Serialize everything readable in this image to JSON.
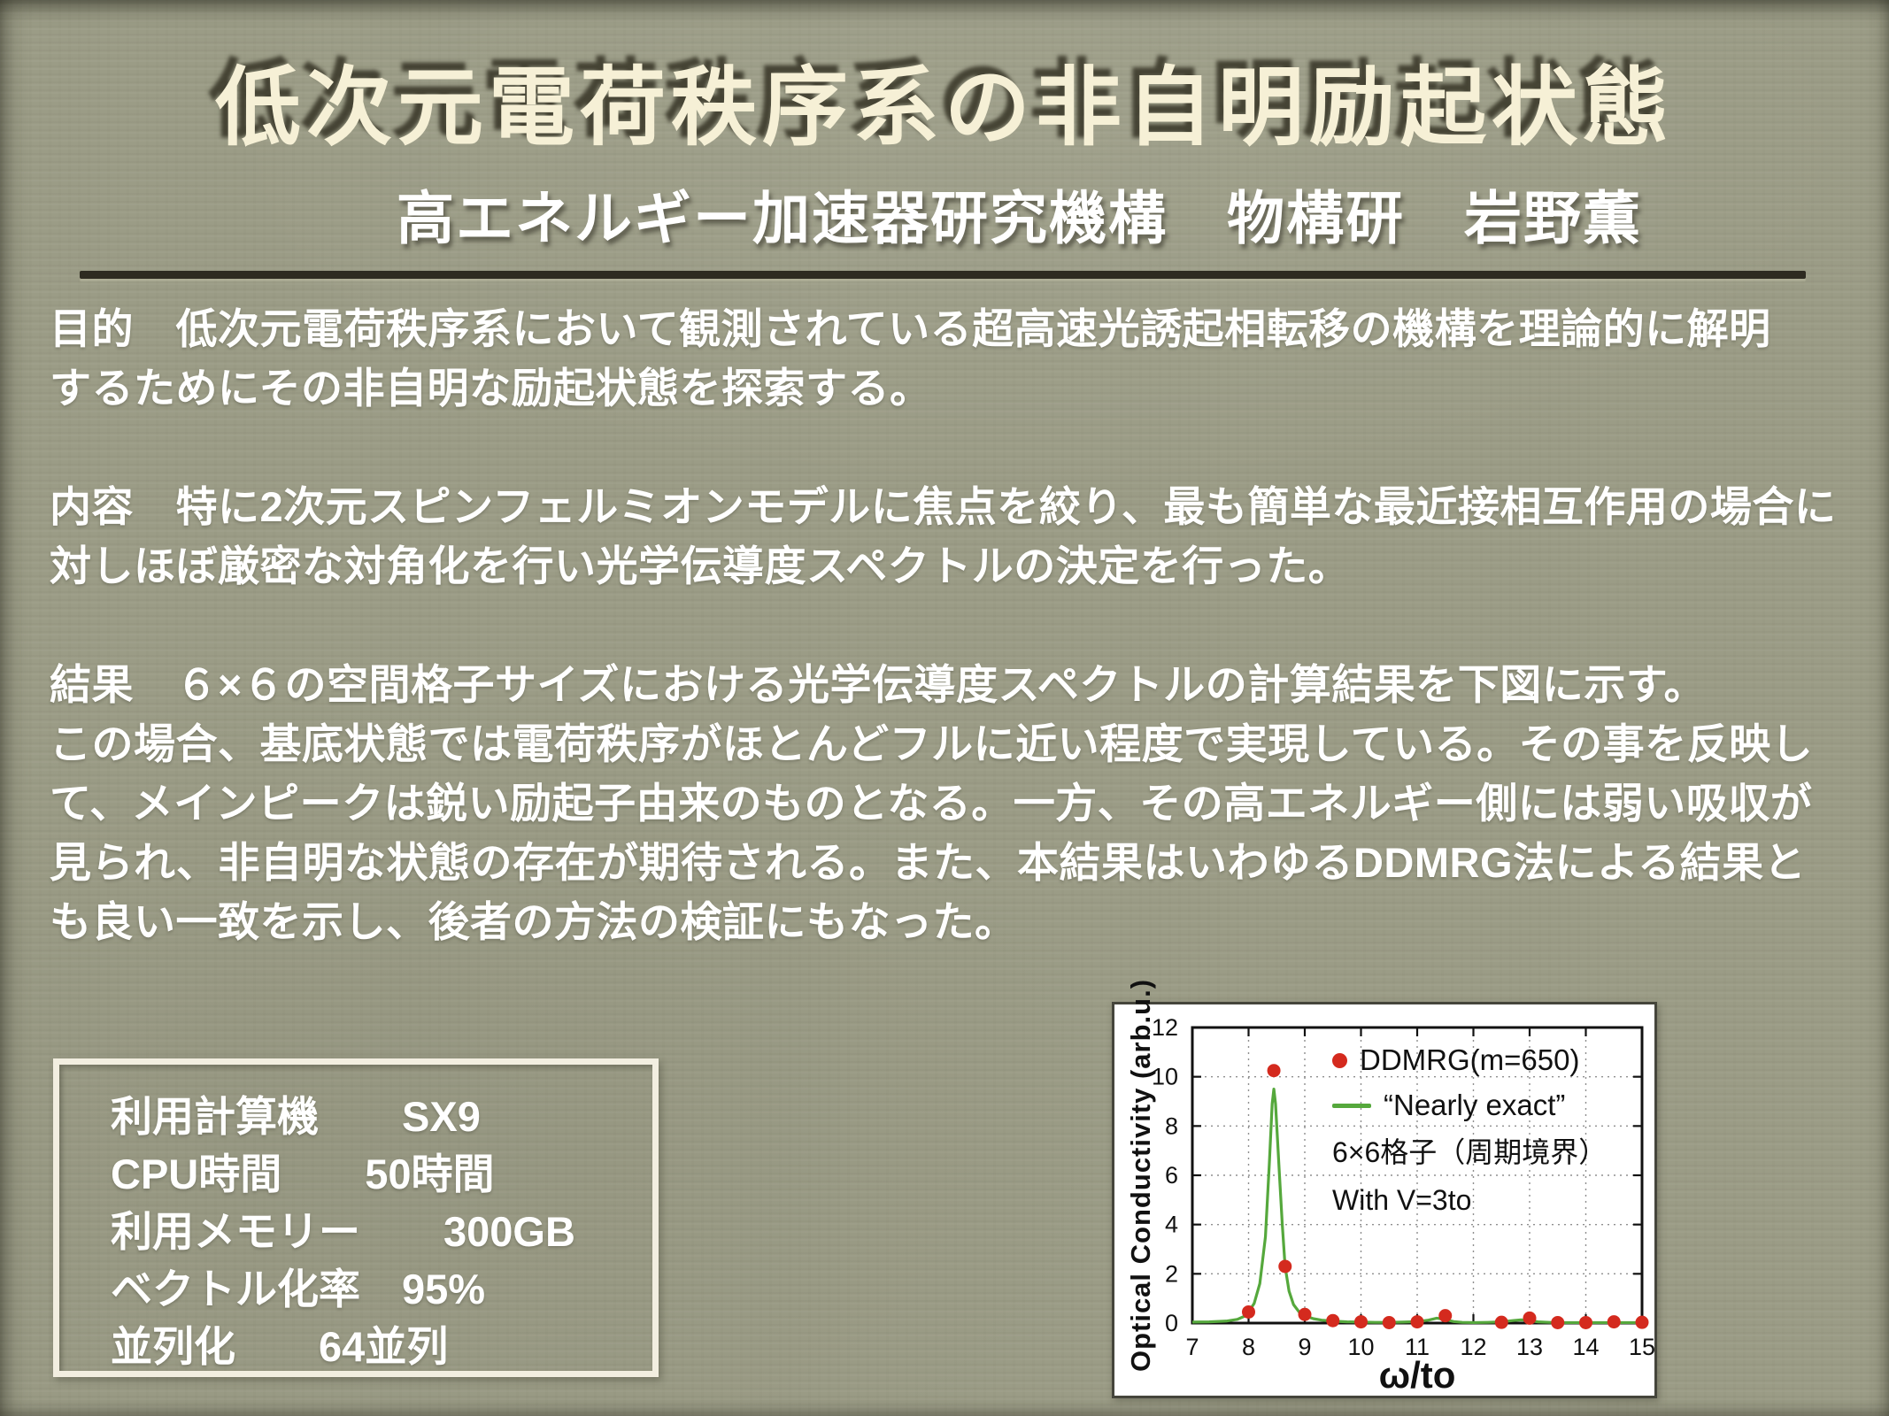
{
  "slide": {
    "title": "低次元電荷秩序系の非自明励起状態",
    "subtitle": "高エネルギー加速器研究機構　物構研　岩野薫"
  },
  "sections": {
    "purpose": {
      "lines": [
        "目的　低次元電荷秩序系において観測されている超高速光誘起相転移の機構を理論的に解明",
        "するためにその非自明な励起状態を探索する。"
      ]
    },
    "content": {
      "lines": [
        "内容　特に2次元スピンフェルミオンモデルに焦点を絞り、最も簡単な最近接相互作用の場合に",
        "対しほぼ厳密な対角化を行い光学伝導度スペクトルの決定を行った。"
      ]
    },
    "result": {
      "lines": [
        "結果　６×６の空間格子サイズにおける光学伝導度スペクトルの計算結果を下図に示す。",
        "この場合、基底状態では電荷秩序がほとんどフルに近い程度で実現している。その事を反映し",
        "て、メインピークは鋭い励起子由来のものとなる。一方、その高エネルギー側には弱い吸収が",
        "見られ、非自明な状態の存在が期待される。また、本結果はいわゆるDDMRG法による結果と",
        "も良い一致を示し、後者の方法の検証にもなった。"
      ]
    }
  },
  "spec_box": {
    "lines": [
      "利用計算機　　SX9",
      "CPU時間　　50時間",
      "利用メモリー　　300GB",
      "ベクトル化率　95%",
      "並列化　　64並列"
    ]
  },
  "chart_data": {
    "type": "line",
    "title": "",
    "xlabel": "ω/to",
    "ylabel": "Optical Conductivity (arb.u.)",
    "xlim": [
      7,
      15
    ],
    "ylim": [
      0,
      12
    ],
    "xticks": [
      7,
      8,
      9,
      10,
      11,
      12,
      13,
      14,
      15
    ],
    "yticks": [
      0,
      2,
      4,
      6,
      8,
      10,
      12
    ],
    "grid": true,
    "legend_position": "top-right",
    "annotations": [
      "6×6格子（周期境界）",
      "With V=3to"
    ],
    "series": [
      {
        "name": "DDMRG(m=650)",
        "type": "scatter",
        "color": "#d42a1e",
        "points": [
          [
            8.0,
            0.45
          ],
          [
            8.45,
            10.25
          ],
          [
            8.65,
            2.3
          ],
          [
            9.0,
            0.35
          ],
          [
            9.5,
            0.1
          ],
          [
            10.0,
            0.05
          ],
          [
            10.5,
            0.02
          ],
          [
            11.0,
            0.05
          ],
          [
            11.5,
            0.3
          ],
          [
            12.5,
            0.03
          ],
          [
            13.0,
            0.2
          ],
          [
            13.5,
            0.02
          ],
          [
            14.0,
            0.02
          ],
          [
            14.5,
            0.05
          ],
          [
            15.0,
            0.03
          ]
        ]
      },
      {
        "name": "“Nearly exact”",
        "type": "line",
        "color": "#55a83c",
        "points": [
          [
            7.0,
            0.04
          ],
          [
            7.3,
            0.05
          ],
          [
            7.6,
            0.08
          ],
          [
            7.8,
            0.15
          ],
          [
            7.95,
            0.3
          ],
          [
            8.0,
            0.45
          ],
          [
            8.1,
            0.8
          ],
          [
            8.2,
            1.6
          ],
          [
            8.3,
            3.5
          ],
          [
            8.37,
            6.5
          ],
          [
            8.42,
            8.9
          ],
          [
            8.45,
            9.5
          ],
          [
            8.48,
            8.9
          ],
          [
            8.55,
            6.0
          ],
          [
            8.6,
            4.0
          ],
          [
            8.65,
            2.3
          ],
          [
            8.72,
            1.3
          ],
          [
            8.8,
            0.75
          ],
          [
            8.9,
            0.45
          ],
          [
            9.0,
            0.3
          ],
          [
            9.15,
            0.18
          ],
          [
            9.3,
            0.12
          ],
          [
            9.5,
            0.08
          ],
          [
            9.75,
            0.05
          ],
          [
            10.0,
            0.04
          ],
          [
            10.25,
            0.03
          ],
          [
            10.5,
            0.03
          ],
          [
            10.75,
            0.04
          ],
          [
            11.0,
            0.06
          ],
          [
            11.2,
            0.12
          ],
          [
            11.35,
            0.2
          ],
          [
            11.5,
            0.14
          ],
          [
            11.65,
            0.06
          ],
          [
            11.8,
            0.03
          ],
          [
            12.0,
            0.02
          ],
          [
            12.25,
            0.03
          ],
          [
            12.5,
            0.05
          ],
          [
            12.7,
            0.1
          ],
          [
            12.85,
            0.13
          ],
          [
            13.0,
            0.1
          ],
          [
            13.15,
            0.05
          ],
          [
            13.35,
            0.03
          ],
          [
            13.5,
            0.02
          ],
          [
            14.0,
            0.02
          ],
          [
            14.5,
            0.02
          ],
          [
            15.0,
            0.02
          ]
        ]
      }
    ]
  },
  "colors": {
    "background": "#9b9c86",
    "title_text": "#f6f0d6",
    "body_text": "#ffffff",
    "rule": "#2e2b21"
  }
}
